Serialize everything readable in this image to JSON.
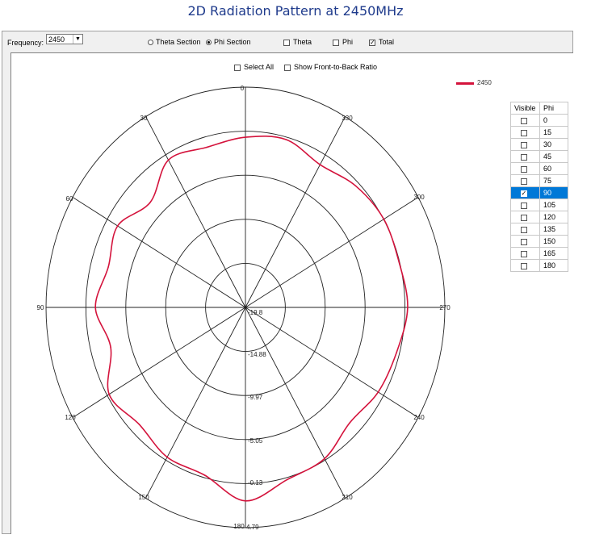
{
  "title": "2D Radiation Pattern at 2450MHz",
  "toolbar": {
    "frequency_label": "Frequency:",
    "frequency_value": "2450",
    "theta_section": "Theta Section",
    "phi_section": "Phi Section",
    "theta_cb": "Theta",
    "phi_cb": "Phi",
    "total_cb": "Total",
    "select_all": "Select All",
    "front_to_back": "Show Front-to-Back Ratio"
  },
  "legend": {
    "label": "2450",
    "color": "#d4133c"
  },
  "angle_labels": [
    "0",
    "330",
    "300",
    "270",
    "240",
    "210",
    "180",
    "150",
    "120",
    "90",
    "60",
    "30"
  ],
  "ring_labels": [
    "-19.8",
    "-14.88",
    "-9.97",
    "-5.05",
    "-0.13",
    "4.79"
  ],
  "phi_table": {
    "headers": [
      "Visible",
      "Phi"
    ],
    "rows": [
      {
        "phi": "0",
        "checked": false
      },
      {
        "phi": "15",
        "checked": false
      },
      {
        "phi": "30",
        "checked": false
      },
      {
        "phi": "45",
        "checked": false
      },
      {
        "phi": "60",
        "checked": false
      },
      {
        "phi": "75",
        "checked": false
      },
      {
        "phi": "90",
        "checked": true
      },
      {
        "phi": "105",
        "checked": false
      },
      {
        "phi": "120",
        "checked": false
      },
      {
        "phi": "135",
        "checked": false
      },
      {
        "phi": "150",
        "checked": false
      },
      {
        "phi": "165",
        "checked": false
      },
      {
        "phi": "180",
        "checked": false
      }
    ]
  },
  "chart_data": {
    "type": "polar-line",
    "title": "2D Radiation Pattern at 2450MHz",
    "r_ticks": [
      -19.8,
      -14.88,
      -9.97,
      -5.05,
      -0.13,
      4.79
    ],
    "r_range": [
      -19.8,
      4.79
    ],
    "angle_ticks_deg": [
      0,
      30,
      60,
      90,
      120,
      150,
      180,
      210,
      240,
      270,
      300,
      330
    ],
    "series": [
      {
        "name": "2450",
        "angles_deg": [
          0,
          15,
          30,
          45,
          60,
          75,
          90,
          105,
          120,
          135,
          150,
          165,
          180,
          195,
          210,
          225,
          240,
          255,
          270,
          285,
          300,
          315,
          330,
          345
        ],
        "values_db": [
          -0.8,
          -1.3,
          -0.8,
          -3.2,
          -1.6,
          -2.3,
          -1.3,
          -2.6,
          -0.4,
          -1.3,
          -0.5,
          -0.4,
          1.8,
          0.1,
          -0.3,
          -1.6,
          -0.9,
          -0.5,
          0.2,
          -0.2,
          -0.1,
          -0.6,
          -1.4,
          -0.4
        ]
      }
    ]
  }
}
